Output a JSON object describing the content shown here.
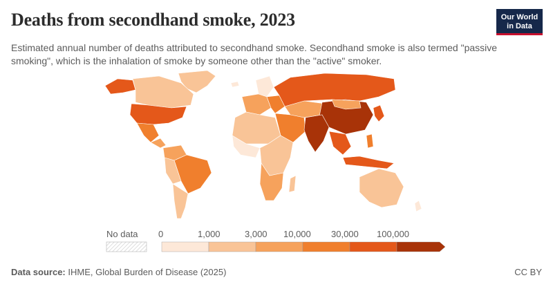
{
  "header": {
    "title": "Deaths from secondhand smoke, 2023",
    "subtitle": "Estimated annual number of deaths attributed to secondhand smoke. Secondhand smoke is also termed \"passive smoking\", which is the inhalation of smoke by someone other than the \"active\" smoker."
  },
  "logo": {
    "line1": "Our World",
    "line2": "in Data"
  },
  "legend": {
    "no_data_label": "No data",
    "ticks": [
      "0",
      "1,000",
      "3,000",
      "10,000",
      "30,000",
      "100,000"
    ],
    "colors": [
      "#fde8d8",
      "#f9c497",
      "#f6a25c",
      "#f07f2d",
      "#e4581a",
      "#a83308"
    ],
    "no_data_color": "#e6e6e6"
  },
  "footer": {
    "source_label": "Data source:",
    "source_text": "IHME, Global Burden of Disease (2025)",
    "license": "CC BY"
  }
}
